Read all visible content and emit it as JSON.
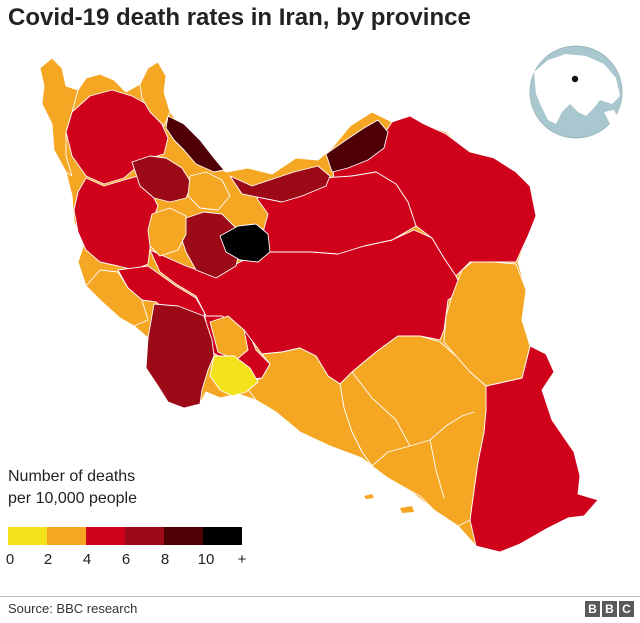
{
  "title": "Covid-19 death rates in Iran, by province",
  "legend": {
    "title_line1": "Number of deaths",
    "title_line2": "per 10,000 people",
    "bins": [
      {
        "range": "0–2",
        "color": "#f4e21c"
      },
      {
        "range": "2–4",
        "color": "#f5a623"
      },
      {
        "range": "4–6",
        "color": "#d0021b"
      },
      {
        "range": "6–8",
        "color": "#9b0a16"
      },
      {
        "range": "8–10",
        "color": "#4e0006"
      },
      {
        "range": "10+",
        "color": "#000000"
      }
    ],
    "tick_labels": [
      "0",
      "2",
      "4",
      "6",
      "8",
      "10",
      "+"
    ]
  },
  "locator_globe": {
    "land_color": "#ffffff",
    "water_color": "#a9c7ce",
    "marker": "Iran"
  },
  "source": "Source: BBC research",
  "logo_letters": [
    "B",
    "B",
    "C"
  ]
}
